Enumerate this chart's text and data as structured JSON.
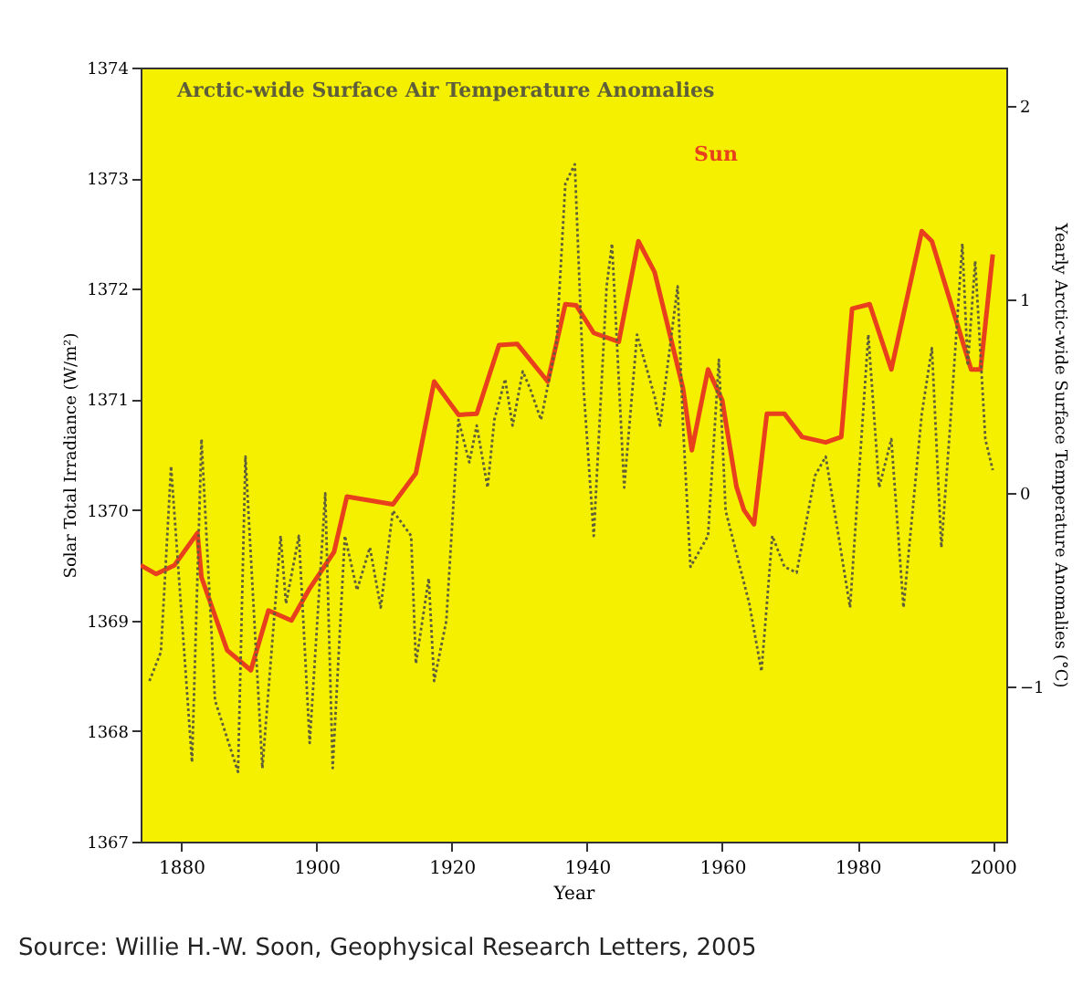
{
  "chart_data": {
    "type": "line",
    "xlabel": "Year",
    "ylabel": "Solar Total Irradiance (W/m²)",
    "y2label": "Yearly Arctic-wide Surface Temperature Anomalies (°C)",
    "xlim": [
      1874,
      2002
    ],
    "xticks": [
      1880,
      1900,
      1920,
      1940,
      1960,
      1980,
      2000
    ],
    "ylim": [
      1367,
      1374
    ],
    "yticks": [
      1367,
      1368,
      1369,
      1370,
      1371,
      1372,
      1373,
      1374
    ],
    "y2lim": [
      -1.8,
      2.2
    ],
    "y2ticks": [
      -1,
      0,
      1,
      2
    ],
    "grid": false,
    "legend": false,
    "marker": "none",
    "annotations": [
      "Source: Willie H.-W. Soon, Geophysical Research Letters, 2005"
    ],
    "series": [
      {
        "name": "Sun",
        "color": "#e8401c",
        "line_style": "solid",
        "x": [
          1874,
          1876.3,
          1879,
          1882.4,
          1883,
          1886.8,
          1890.3,
          1892.9,
          1896.3,
          1899,
          1902.6,
          1904.5,
          1911.3,
          1914.7,
          1917.4,
          1921,
          1923.7,
          1927,
          1929.7,
          1934.2,
          1936.8,
          1938.4,
          1941,
          1944.7,
          1947.6,
          1950,
          1954.2,
          1955.5,
          1957.9,
          1960,
          1962.1,
          1963.2,
          1964.7,
          1966.6,
          1969.2,
          1971.8,
          1975.3,
          1977.6,
          1979.2,
          1981.8,
          1985,
          1989.5,
          1991,
          1996.8,
          1998.2,
          2000
        ],
        "values": [
          1369.5,
          1369.42,
          1369.5,
          1369.79,
          1369.39,
          1368.73,
          1368.55,
          1369.09,
          1369.0,
          1369.29,
          1369.62,
          1370.12,
          1370.05,
          1370.33,
          1371.16,
          1370.86,
          1370.87,
          1371.49,
          1371.5,
          1371.16,
          1371.86,
          1371.85,
          1371.6,
          1371.52,
          1372.43,
          1372.15,
          1371.1,
          1370.54,
          1371.27,
          1370.99,
          1370.21,
          1370.0,
          1369.87,
          1370.87,
          1370.87,
          1370.66,
          1370.61,
          1370.66,
          1371.82,
          1371.86,
          1371.27,
          1372.52,
          1372.43,
          1371.27,
          1371.27,
          1372.31
        ]
      },
      {
        "name": "Arctic-wide Surface Air Temperature Anomalies",
        "color": "#5e5e3a",
        "line_style": "dotted",
        "axis": "y2",
        "x": [
          1875.3,
          1877,
          1878.5,
          1881.6,
          1883,
          1885,
          1888.4,
          1889.5,
          1892,
          1894.7,
          1895.5,
          1897.4,
          1899,
          1901.3,
          1902.4,
          1904.2,
          1906,
          1907.9,
          1909.5,
          1911.3,
          1914,
          1914.7,
          1916.6,
          1917.4,
          1919.2,
          1921,
          1922.6,
          1923.7,
          1925.3,
          1926.3,
          1927.9,
          1929,
          1930.5,
          1931.6,
          1933.2,
          1935.5,
          1936.8,
          1938.2,
          1939.5,
          1941,
          1942.9,
          1943.7,
          1945.5,
          1947.4,
          1950,
          1950.8,
          1953.4,
          1954.2,
          1955.3,
          1957.9,
          1959.5,
          1960.5,
          1964,
          1965.8,
          1967.4,
          1969.2,
          1971,
          1973.7,
          1975.3,
          1978.9,
          1981.6,
          1983.2,
          1985,
          1986.8,
          1989.5,
          1991,
          1992.4,
          1993.7,
          1995.5,
          1996.3,
          1997.4,
          1998.9,
          2000
        ],
        "values": [
          -0.97,
          -0.82,
          0.14,
          -1.39,
          0.28,
          -1.07,
          -1.44,
          0.19,
          -1.42,
          -0.22,
          -0.57,
          -0.22,
          -1.29,
          0.0,
          -1.42,
          -0.22,
          -0.5,
          -0.28,
          -0.59,
          -0.09,
          -0.22,
          -0.88,
          -0.44,
          -0.97,
          -0.66,
          0.38,
          0.16,
          0.35,
          0.03,
          0.38,
          0.59,
          0.35,
          0.63,
          0.54,
          0.38,
          0.78,
          1.6,
          1.7,
          0.54,
          -0.22,
          1.07,
          1.29,
          0.03,
          0.82,
          0.5,
          0.35,
          1.07,
          0.35,
          -0.38,
          -0.22,
          0.69,
          -0.09,
          -0.57,
          -0.92,
          -0.22,
          -0.38,
          -0.41,
          0.09,
          0.19,
          -0.59,
          0.82,
          0.03,
          0.28,
          -0.59,
          0.41,
          0.75,
          -0.28,
          0.35,
          1.29,
          0.66,
          1.2,
          0.28,
          0.12
        ]
      }
    ]
  }
}
